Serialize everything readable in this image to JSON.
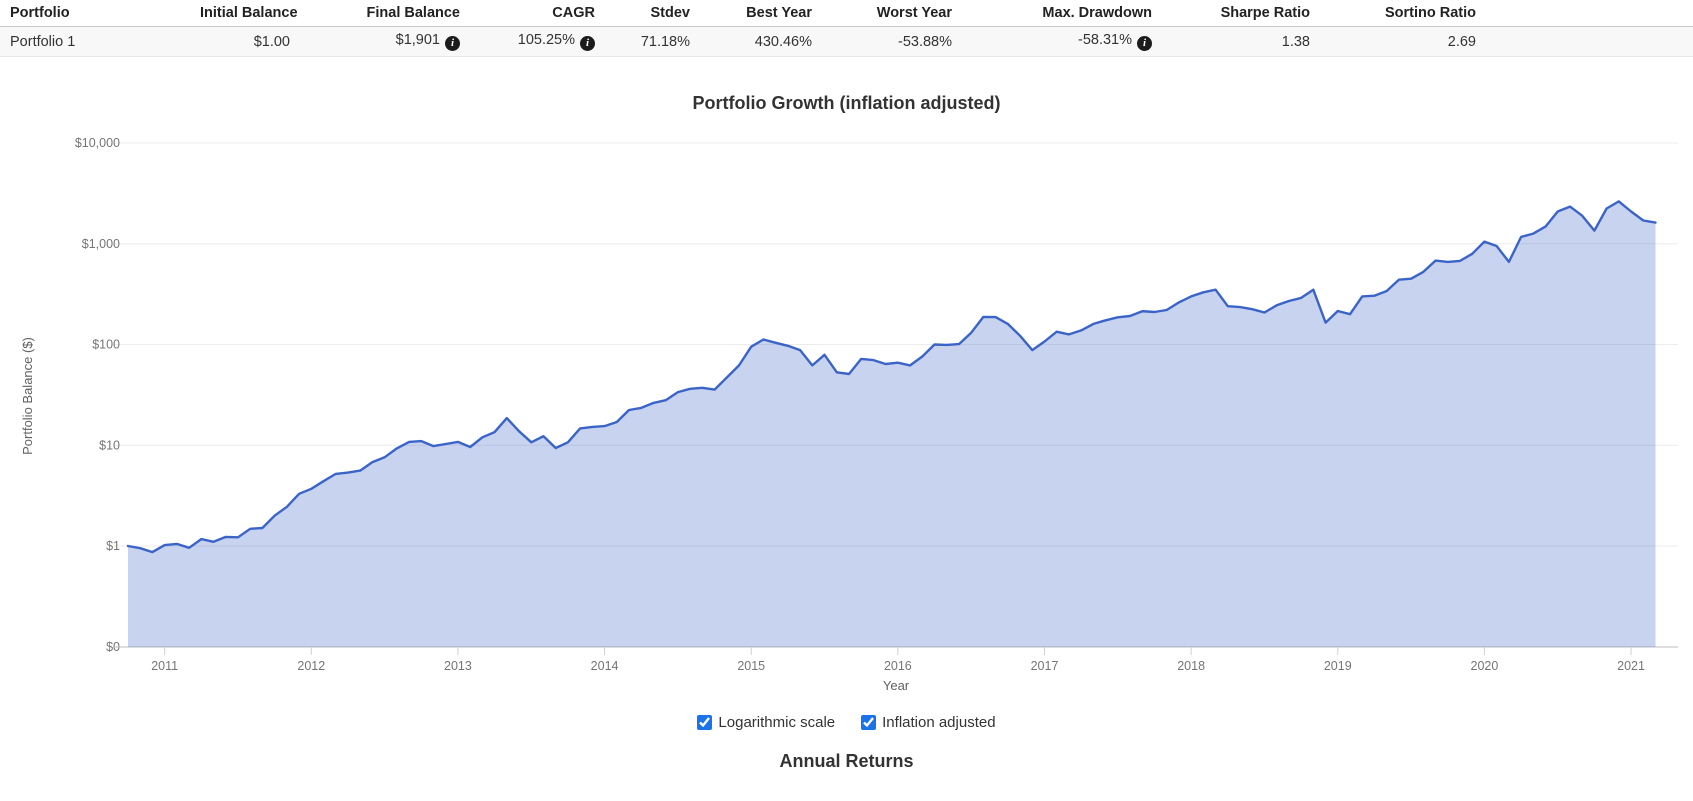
{
  "icons": {
    "info": "i"
  },
  "table": {
    "headers": [
      "Portfolio",
      "Initial Balance",
      "Final Balance",
      "CAGR",
      "Stdev",
      "Best Year",
      "Worst Year",
      "Max. Drawdown",
      "Sharpe Ratio",
      "Sortino Ratio"
    ],
    "row": {
      "name": "Portfolio 1",
      "initial_balance": "$1.00",
      "final_balance": "$1,901",
      "cagr": "105.25%",
      "stdev": "71.18%",
      "best_year": "430.46%",
      "worst_year": "-53.88%",
      "max_drawdown": "-58.31%",
      "sharpe": "1.38",
      "sortino": "2.69"
    }
  },
  "controls": [
    {
      "label": "Logarithmic scale",
      "checked": true
    },
    {
      "label": "Inflation adjusted",
      "checked": true
    }
  ],
  "annual_returns": {
    "title": "Annual Returns"
  },
  "chart_data": {
    "type": "area",
    "title": "Portfolio Growth (inflation adjusted)",
    "xlabel": "Year",
    "ylabel": "Portfolio Balance ($)",
    "y_scale": "log",
    "grid": true,
    "colors": {
      "line": "#3b64c8",
      "fill": "rgba(59,98,198,0.28)"
    },
    "y_axis": {
      "label": "Portfolio Balance ($)",
      "ticks": [
        {
          "label": "$0",
          "value": 0
        },
        {
          "label": "$1",
          "value": 1
        },
        {
          "label": "$10",
          "value": 10
        },
        {
          "label": "$100",
          "value": 100
        },
        {
          "label": "$1,000",
          "value": 1000
        },
        {
          "label": "$10,000",
          "value": 10000
        }
      ]
    },
    "x_axis": {
      "label": "Year",
      "tick_years": [
        "2011",
        "2012",
        "2013",
        "2014",
        "2015",
        "2016",
        "2017",
        "2018",
        "2019",
        "2020",
        "2021"
      ]
    },
    "series": [
      {
        "name": "Portfolio 1",
        "dates": [
          "2010-10",
          "2010-11",
          "2010-12",
          "2011-01",
          "2011-02",
          "2011-03",
          "2011-04",
          "2011-05",
          "2011-06",
          "2011-07",
          "2011-08",
          "2011-09",
          "2011-10",
          "2011-11",
          "2011-12",
          "2012-01",
          "2012-02",
          "2012-03",
          "2012-04",
          "2012-05",
          "2012-06",
          "2012-07",
          "2012-08",
          "2012-09",
          "2012-10",
          "2012-11",
          "2012-12",
          "2013-01",
          "2013-02",
          "2013-03",
          "2013-04",
          "2013-05",
          "2013-06",
          "2013-07",
          "2013-08",
          "2013-09",
          "2013-10",
          "2013-11",
          "2013-12",
          "2014-01",
          "2014-02",
          "2014-03",
          "2014-04",
          "2014-05",
          "2014-06",
          "2014-07",
          "2014-08",
          "2014-09",
          "2014-10",
          "2014-11",
          "2014-12",
          "2015-01",
          "2015-02",
          "2015-03",
          "2015-04",
          "2015-05",
          "2015-06",
          "2015-07",
          "2015-08",
          "2015-09",
          "2015-10",
          "2015-11",
          "2015-12",
          "2016-01",
          "2016-02",
          "2016-03",
          "2016-04",
          "2016-05",
          "2016-06",
          "2016-07",
          "2016-08",
          "2016-09",
          "2016-10",
          "2016-11",
          "2016-12",
          "2017-01",
          "2017-02",
          "2017-03",
          "2017-04",
          "2017-05",
          "2017-06",
          "2017-07",
          "2017-08",
          "2017-09",
          "2017-10",
          "2017-11",
          "2017-12",
          "2018-01",
          "2018-02",
          "2018-03",
          "2018-04",
          "2018-05",
          "2018-06",
          "2018-07",
          "2018-08",
          "2018-09",
          "2018-10",
          "2018-11",
          "2018-12",
          "2019-01",
          "2019-02",
          "2019-03",
          "2019-04",
          "2019-05",
          "2019-06",
          "2019-07",
          "2019-08",
          "2019-09",
          "2019-10",
          "2019-11",
          "2019-12",
          "2020-01",
          "2020-02",
          "2020-03",
          "2020-04",
          "2020-05",
          "2020-06",
          "2020-07",
          "2020-08",
          "2020-09",
          "2020-10",
          "2020-11",
          "2020-12",
          "2021-01",
          "2021-02",
          "2021-03"
        ],
        "values": [
          1.0,
          0.95,
          0.87,
          1.02,
          1.05,
          0.96,
          1.17,
          1.1,
          1.23,
          1.22,
          1.48,
          1.51,
          2.0,
          2.45,
          3.3,
          3.7,
          4.4,
          5.2,
          5.35,
          5.6,
          6.8,
          7.6,
          9.3,
          10.8,
          11.0,
          9.8,
          10.3,
          10.8,
          9.6,
          12.0,
          13.5,
          18.6,
          13.8,
          10.7,
          12.3,
          9.4,
          10.7,
          14.7,
          15.2,
          15.5,
          17.0,
          22.4,
          23.5,
          26.3,
          28.0,
          33.7,
          36.3,
          37.2,
          35.7,
          47.0,
          62.0,
          95.0,
          112.0,
          104.0,
          97.0,
          88.0,
          62.0,
          79.0,
          53.0,
          51.0,
          72.0,
          70.0,
          64.0,
          66.0,
          62.0,
          76.0,
          100.0,
          99.0,
          101.0,
          131.0,
          188.0,
          187.0,
          160.0,
          122.0,
          88.0,
          107,
          134,
          126,
          138,
          160,
          174,
          186,
          192,
          214,
          210,
          220,
          262,
          300,
          330,
          350,
          240,
          235,
          224,
          208,
          245,
          270,
          290,
          350,
          165,
          215,
          200,
          300,
          305,
          340,
          440,
          450,
          525,
          680,
          660,
          675,
          795,
          1050,
          950,
          660,
          1170,
          1260,
          1480,
          2090,
          2340,
          1900,
          1350,
          2240,
          2630,
          2090,
          1700,
          1620
        ]
      }
    ]
  }
}
